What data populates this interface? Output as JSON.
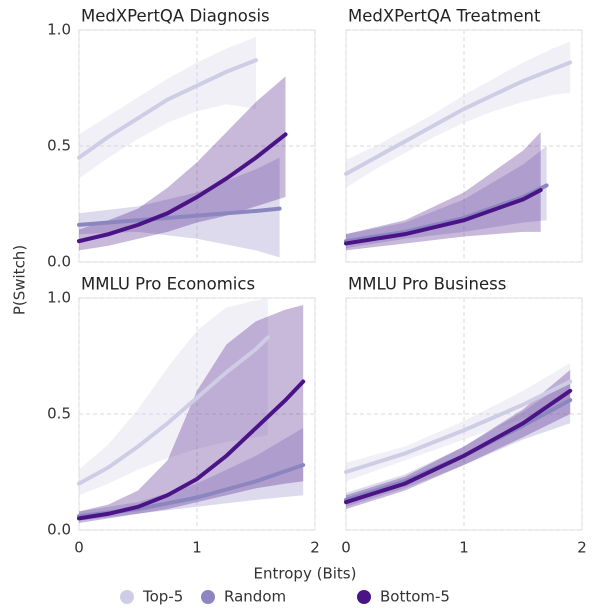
{
  "axes": {
    "xlabel": "Entropy (Bits)",
    "ylabel": "P(Switch)",
    "xlim": [
      0,
      2
    ],
    "ylim": [
      0,
      1
    ],
    "xticks": [
      0,
      1,
      2
    ],
    "yticks": [
      {
        "value": 0,
        "label": "0.0"
      },
      0.5,
      {
        "value": 1,
        "label": "1.0"
      }
    ],
    "grid": true,
    "legend": "bottom"
  },
  "chart_data": [
    {
      "type": "line",
      "title": "MedXPertQA Diagnosis",
      "series": [
        {
          "name": "Top-5",
          "color": "#cfcde6",
          "x": [
            0,
            0.25,
            0.5,
            0.75,
            1,
            1.25,
            1.5
          ],
          "values": [
            0.45,
            0.54,
            0.62,
            0.7,
            0.76,
            0.82,
            0.87
          ],
          "lower": [
            0.36,
            0.45,
            0.53,
            0.6,
            0.65,
            0.68,
            0.66
          ],
          "upper": [
            0.55,
            0.63,
            0.71,
            0.79,
            0.86,
            0.92,
            0.97
          ]
        },
        {
          "name": "Random",
          "color": "#8c86c0",
          "x": [
            0,
            0.5,
            1,
            1.5,
            1.7
          ],
          "values": [
            0.16,
            0.18,
            0.2,
            0.22,
            0.23
          ],
          "lower": [
            0.12,
            0.13,
            0.1,
            0.05,
            0.02
          ],
          "upper": [
            0.21,
            0.24,
            0.3,
            0.4,
            0.45
          ]
        },
        {
          "name": "Bottom-5",
          "color": "#4a1486",
          "x": [
            0,
            0.25,
            0.5,
            0.75,
            1,
            1.25,
            1.5,
            1.75
          ],
          "values": [
            0.09,
            0.12,
            0.16,
            0.21,
            0.28,
            0.36,
            0.45,
            0.55
          ],
          "lower": [
            0.05,
            0.07,
            0.1,
            0.13,
            0.17,
            0.2,
            0.24,
            0.28
          ],
          "upper": [
            0.14,
            0.18,
            0.23,
            0.32,
            0.43,
            0.56,
            0.69,
            0.8
          ]
        }
      ]
    },
    {
      "type": "line",
      "title": "MedXPertQA Treatment",
      "series": [
        {
          "name": "Top-5",
          "color": "#cfcde6",
          "x": [
            0,
            0.25,
            0.5,
            0.75,
            1,
            1.25,
            1.5,
            1.75,
            1.9
          ],
          "values": [
            0.38,
            0.45,
            0.52,
            0.59,
            0.66,
            0.72,
            0.78,
            0.83,
            0.86
          ],
          "lower": [
            0.32,
            0.4,
            0.47,
            0.54,
            0.6,
            0.65,
            0.69,
            0.72,
            0.73
          ],
          "upper": [
            0.44,
            0.5,
            0.57,
            0.64,
            0.72,
            0.79,
            0.86,
            0.92,
            0.95
          ]
        },
        {
          "name": "Random",
          "color": "#8c86c0",
          "x": [
            0,
            0.5,
            1,
            1.5,
            1.7
          ],
          "values": [
            0.09,
            0.13,
            0.19,
            0.28,
            0.33
          ],
          "lower": [
            0.06,
            0.1,
            0.13,
            0.17,
            0.18
          ],
          "upper": [
            0.12,
            0.17,
            0.27,
            0.42,
            0.5
          ]
        },
        {
          "name": "Bottom-5",
          "color": "#4a1486",
          "x": [
            0,
            0.5,
            1,
            1.5,
            1.65
          ],
          "values": [
            0.08,
            0.12,
            0.18,
            0.27,
            0.31
          ],
          "lower": [
            0.05,
            0.08,
            0.11,
            0.13,
            0.13
          ],
          "upper": [
            0.12,
            0.18,
            0.3,
            0.48,
            0.56
          ]
        }
      ]
    },
    {
      "type": "line",
      "title": "MMLU Pro Economics",
      "series": [
        {
          "name": "Top-5",
          "color": "#cfcde6",
          "x": [
            0,
            0.25,
            0.5,
            0.75,
            1,
            1.25,
            1.5,
            1.6
          ],
          "values": [
            0.2,
            0.27,
            0.36,
            0.46,
            0.57,
            0.68,
            0.78,
            0.83
          ],
          "lower": [
            0.15,
            0.2,
            0.26,
            0.31,
            0.35,
            0.38,
            0.4,
            0.41
          ],
          "upper": [
            0.26,
            0.37,
            0.52,
            0.7,
            0.86,
            0.96,
            0.99,
            1
          ]
        },
        {
          "name": "Random",
          "color": "#8c86c0",
          "x": [
            0,
            0.5,
            1,
            1.5,
            1.9
          ],
          "values": [
            0.06,
            0.09,
            0.14,
            0.21,
            0.28
          ],
          "lower": [
            0.04,
            0.07,
            0.1,
            0.13,
            0.15
          ],
          "upper": [
            0.08,
            0.12,
            0.2,
            0.32,
            0.44
          ]
        },
        {
          "name": "Bottom-5",
          "color": "#4a1486",
          "x": [
            0,
            0.25,
            0.5,
            0.75,
            1,
            1.25,
            1.5,
            1.75,
            1.9
          ],
          "values": [
            0.05,
            0.07,
            0.1,
            0.15,
            0.22,
            0.32,
            0.44,
            0.56,
            0.64
          ],
          "lower": [
            0.03,
            0.05,
            0.07,
            0.09,
            0.12,
            0.15,
            0.18,
            0.2,
            0.21
          ],
          "upper": [
            0.08,
            0.11,
            0.17,
            0.3,
            0.6,
            0.8,
            0.9,
            0.95,
            0.97
          ]
        }
      ]
    },
    {
      "type": "line",
      "title": "MMLU Pro Business",
      "series": [
        {
          "name": "Top-5",
          "color": "#cfcde6",
          "x": [
            0,
            0.5,
            1,
            1.5,
            1.9
          ],
          "values": [
            0.25,
            0.33,
            0.43,
            0.54,
            0.64
          ],
          "lower": [
            0.21,
            0.3,
            0.39,
            0.48,
            0.55
          ],
          "upper": [
            0.29,
            0.36,
            0.47,
            0.6,
            0.72
          ]
        },
        {
          "name": "Random",
          "color": "#8c86c0",
          "x": [
            0,
            0.5,
            1,
            1.5,
            1.9
          ],
          "values": [
            0.13,
            0.21,
            0.32,
            0.45,
            0.56
          ],
          "lower": [
            0.1,
            0.18,
            0.28,
            0.39,
            0.46
          ],
          "upper": [
            0.16,
            0.24,
            0.36,
            0.51,
            0.65
          ]
        },
        {
          "name": "Bottom-5",
          "color": "#4a1486",
          "x": [
            0,
            0.5,
            1,
            1.5,
            1.9
          ],
          "values": [
            0.12,
            0.2,
            0.32,
            0.46,
            0.6
          ],
          "lower": [
            0.09,
            0.17,
            0.28,
            0.4,
            0.5
          ],
          "upper": [
            0.15,
            0.23,
            0.36,
            0.52,
            0.69
          ]
        }
      ]
    }
  ]
}
